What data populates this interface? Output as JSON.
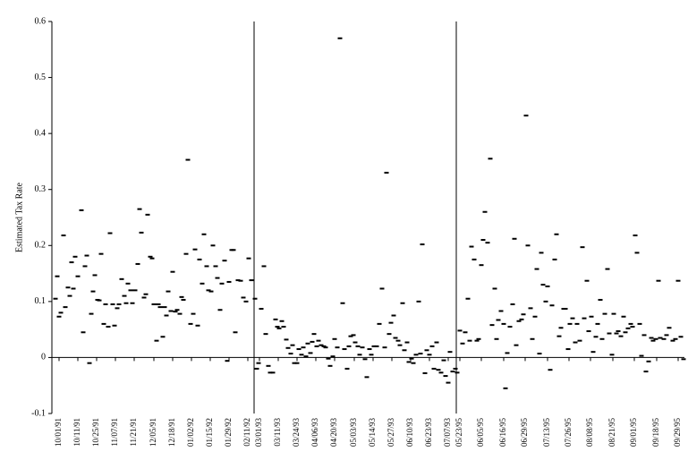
{
  "chart_data": {
    "type": "scatter",
    "y_label": "Estimated Tax Rate",
    "color": "#000000",
    "ylim": [
      -0.1,
      0.6
    ],
    "yticks": [
      -0.1,
      0,
      0.1,
      0.2,
      0.3,
      0.4,
      0.5,
      0.6
    ],
    "xlim": [
      -8,
      699
    ],
    "xticks": [
      {
        "value": 0,
        "label": "10/01/91"
      },
      {
        "value": 21,
        "label": "10/11/91"
      },
      {
        "value": 42,
        "label": "10/25/91"
      },
      {
        "value": 63,
        "label": "11/07/91"
      },
      {
        "value": 84,
        "label": "11/21/91"
      },
      {
        "value": 106,
        "label": "12/05/91"
      },
      {
        "value": 127,
        "label": "12/18/91"
      },
      {
        "value": 148,
        "label": "01/02/92"
      },
      {
        "value": 169,
        "label": "01/15/92"
      },
      {
        "value": 190,
        "label": "01/29/92"
      },
      {
        "value": 211,
        "label": "02/11/92"
      },
      {
        "value": 224,
        "label": "03/01/93"
      },
      {
        "value": 245,
        "label": "03/11/93"
      },
      {
        "value": 266,
        "label": "03/24/93"
      },
      {
        "value": 287,
        "label": "04/06/93"
      },
      {
        "value": 308,
        "label": "04/20/93"
      },
      {
        "value": 330,
        "label": "05/03/93"
      },
      {
        "value": 351,
        "label": "05/14/93"
      },
      {
        "value": 372,
        "label": "05/27/93"
      },
      {
        "value": 393,
        "label": "06/10/93"
      },
      {
        "value": 414,
        "label": "06/23/93"
      },
      {
        "value": 435,
        "label": "07/07/93"
      },
      {
        "value": 448,
        "label": "05/23/95"
      },
      {
        "value": 472,
        "label": "06/05/95"
      },
      {
        "value": 497,
        "label": "06/16/95"
      },
      {
        "value": 521,
        "label": "06/29/95"
      },
      {
        "value": 546,
        "label": "07/13/95"
      },
      {
        "value": 570,
        "label": "07/26/95"
      },
      {
        "value": 594,
        "label": "08/08/95"
      },
      {
        "value": 619,
        "label": "08/21/95"
      },
      {
        "value": 643,
        "label": "09/01/95"
      },
      {
        "value": 668,
        "label": "09/18/95"
      },
      {
        "value": 692,
        "label": "09/29/95"
      }
    ],
    "dividers": [
      218,
      444
    ],
    "x": [
      -4,
      -2,
      0,
      2,
      5,
      7,
      10,
      12,
      14,
      16,
      18,
      21,
      25,
      27,
      29,
      31,
      34,
      36,
      38,
      40,
      43,
      45,
      47,
      50,
      52,
      55,
      57,
      60,
      62,
      65,
      67,
      70,
      73,
      75,
      77,
      80,
      82,
      85,
      88,
      90,
      92,
      95,
      97,
      99,
      102,
      104,
      106,
      109,
      111,
      113,
      116,
      118,
      120,
      122,
      125,
      127,
      130,
      132,
      135,
      137,
      139,
      142,
      144,
      147,
      150,
      152,
      155,
      157,
      160,
      162,
      165,
      167,
      170,
      172,
      175,
      177,
      180,
      182,
      185,
      188,
      190,
      193,
      195,
      197,
      200,
      203,
      206,
      209,
      212,
      215,
      219,
      221,
      223,
      226,
      229,
      231,
      234,
      236,
      239,
      242,
      244,
      246,
      249,
      251,
      254,
      256,
      259,
      261,
      263,
      266,
      268,
      271,
      273,
      276,
      278,
      281,
      283,
      285,
      288,
      290,
      293,
      296,
      298,
      301,
      303,
      306,
      308,
      311,
      314,
      317,
      319,
      322,
      324,
      326,
      329,
      331,
      334,
      336,
      339,
      342,
      344,
      347,
      349,
      352,
      355,
      358,
      361,
      364,
      366,
      369,
      371,
      374,
      376,
      379,
      381,
      384,
      386,
      389,
      391,
      394,
      396,
      399,
      402,
      404,
      406,
      409,
      411,
      414,
      417,
      419,
      422,
      424,
      427,
      430,
      432,
      435,
      437,
      440,
      443,
      445,
      448,
      451,
      454,
      457,
      459,
      461,
      464,
      467,
      469,
      472,
      474,
      476,
      479,
      482,
      484,
      487,
      489,
      491,
      494,
      497,
      499,
      501,
      504,
      507,
      509,
      511,
      514,
      517,
      519,
      522,
      524,
      527,
      529,
      532,
      534,
      537,
      539,
      541,
      544,
      546,
      549,
      551,
      554,
      556,
      559,
      561,
      564,
      566,
      569,
      571,
      574,
      577,
      579,
      582,
      585,
      587,
      590,
      592,
      595,
      597,
      600,
      602,
      605,
      607,
      610,
      613,
      615,
      618,
      620,
      623,
      625,
      628,
      631,
      633,
      636,
      639,
      641,
      644,
      646,
      649,
      651,
      654,
      656,
      659,
      662,
      664,
      667,
      670,
      672,
      676,
      679,
      682,
      686,
      689,
      692,
      695,
      698
    ],
    "values": [
      0.105,
      0.145,
      0.073,
      0.08,
      0.218,
      0.09,
      0.125,
      0.11,
      0.17,
      0.123,
      0.18,
      0.145,
      0.263,
      0.045,
      0.163,
      0.182,
      -0.01,
      0.078,
      0.118,
      0.147,
      0.103,
      0.102,
      0.185,
      0.06,
      0.095,
      0.055,
      0.222,
      0.095,
      0.057,
      0.088,
      0.095,
      0.14,
      0.11,
      0.097,
      0.132,
      0.12,
      0.097,
      0.12,
      0.167,
      0.265,
      0.223,
      0.107,
      0.113,
      0.255,
      0.18,
      0.177,
      0.095,
      0.03,
      0.095,
      0.09,
      0.037,
      0.09,
      0.075,
      0.118,
      0.083,
      0.153,
      0.082,
      0.085,
      0.078,
      0.108,
      0.103,
      0.185,
      0.353,
      0.06,
      0.078,
      0.193,
      0.057,
      0.175,
      0.132,
      0.22,
      0.163,
      0.12,
      0.118,
      0.2,
      0.163,
      0.142,
      0.085,
      0.132,
      0.173,
      -0.006,
      0.135,
      0.192,
      0.192,
      0.045,
      0.138,
      0.137,
      0.107,
      0.1,
      0.177,
      0.138,
      0.105,
      -0.02,
      -0.01,
      0.087,
      0.163,
      0.042,
      -0.015,
      -0.027,
      -0.027,
      0.068,
      0.055,
      0.052,
      0.065,
      0.055,
      0.032,
      0.017,
      0.007,
      0.022,
      -0.01,
      -0.01,
      0.015,
      0.005,
      0.018,
      0.002,
      0.025,
      0.008,
      0.028,
      0.042,
      0.02,
      0.03,
      0.022,
      0.02,
      0.018,
      -0.002,
      -0.015,
      0.002,
      0.033,
      0.018,
      0.57,
      0.097,
      0.015,
      -0.02,
      0.02,
      0.038,
      0.04,
      0.027,
      0.02,
      0.005,
      0.018,
      -0.003,
      -0.035,
      0.015,
      0.005,
      0.02,
      0.02,
      0.06,
      0.123,
      0.018,
      0.33,
      0.042,
      0.062,
      0.075,
      0.035,
      0.03,
      0.022,
      0.097,
      0.013,
      0.027,
      -0.008,
      -0.002,
      -0.01,
      0.005,
      0.1,
      0.007,
      0.202,
      -0.028,
      0.013,
      0.005,
      0.02,
      -0.02,
      0.027,
      -0.022,
      -0.027,
      -0.005,
      -0.033,
      -0.045,
      0.01,
      -0.025,
      -0.02,
      -0.027,
      0.048,
      0.025,
      0.045,
      0.105,
      0.03,
      0.198,
      0.175,
      0.03,
      0.033,
      0.165,
      0.21,
      0.26,
      0.205,
      0.355,
      0.058,
      0.123,
      0.033,
      0.067,
      0.083,
      0.06,
      -0.055,
      0.008,
      0.055,
      0.095,
      0.212,
      0.022,
      0.065,
      0.068,
      0.077,
      0.432,
      0.2,
      0.088,
      0.033,
      0.073,
      0.158,
      0.007,
      0.187,
      0.13,
      0.1,
      0.127,
      -0.022,
      0.093,
      0.175,
      0.22,
      0.038,
      0.053,
      0.087,
      0.087,
      0.015,
      0.06,
      0.07,
      0.027,
      0.06,
      0.03,
      0.197,
      0.07,
      0.137,
      0.047,
      0.073,
      0.01,
      0.037,
      0.06,
      0.103,
      0.033,
      0.078,
      0.158,
      0.043,
      0.005,
      0.078,
      0.043,
      0.047,
      0.038,
      0.073,
      0.045,
      0.052,
      0.06,
      0.055,
      0.218,
      0.187,
      0.06,
      0.003,
      0.04,
      -0.025,
      -0.007,
      0.035,
      0.03,
      0.033,
      0.137,
      0.035,
      0.033,
      0.04,
      0.053,
      0.03,
      0.033,
      0.137,
      0.037,
      -0.003
    ]
  }
}
